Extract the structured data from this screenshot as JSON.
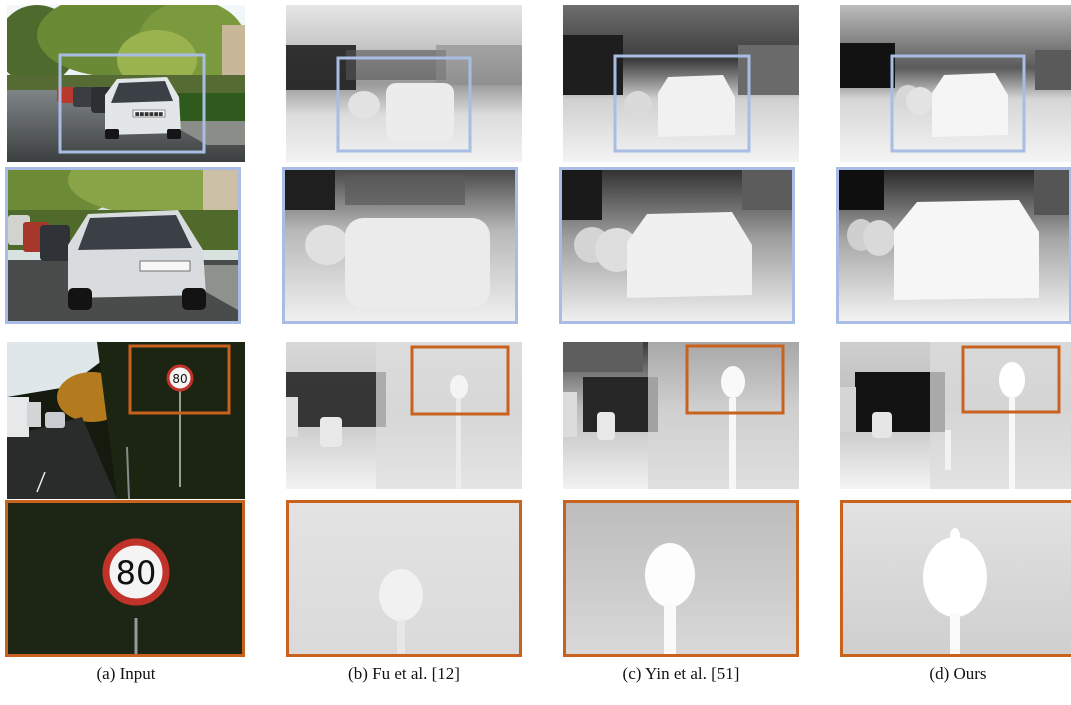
{
  "figure": {
    "columns": [
      {
        "id": "input",
        "caption": "(a) Input"
      },
      {
        "id": "fu",
        "caption": "(b) Fu et al. [12]"
      },
      {
        "id": "yin",
        "caption": "(c) Yin et al. [51]"
      },
      {
        "id": "ours",
        "caption": "(d) Ours"
      }
    ],
    "scene_1": {
      "highlight_color": "#a9bde4",
      "license_plate_text": "■■■■■■"
    },
    "scene_2": {
      "highlight_color": "#c8621e",
      "speed_sign_text": "80"
    }
  }
}
